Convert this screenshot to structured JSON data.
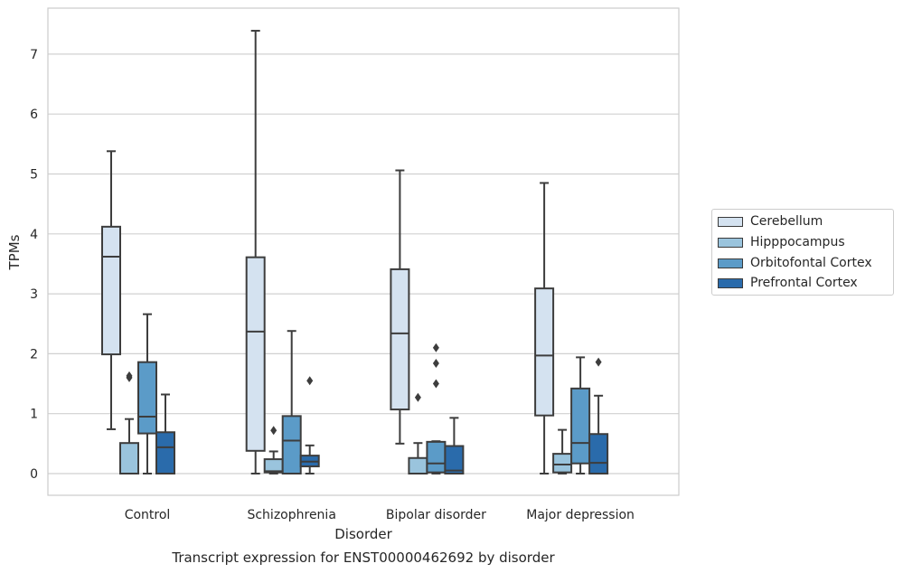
{
  "chart_data": {
    "type": "box",
    "title": "Transcript expression for ENST00000462692 by disorder",
    "xlabel": "Disorder",
    "ylabel": "TPMs",
    "ylim": [
      -0.35,
      7.75
    ],
    "yticks": [
      0,
      1,
      2,
      3,
      4,
      5,
      6,
      7
    ],
    "grid": true,
    "legend_position": "right",
    "categories": [
      "Control",
      "Schizophrenia",
      "Bipolar disorder",
      "Major depression"
    ],
    "series": [
      {
        "name": "Cerebellum",
        "color": "#d4e2f0",
        "boxes": [
          {
            "whisker_low": 0.74,
            "q1": 1.99,
            "median": 3.62,
            "q3": 4.12,
            "whisker_high": 5.38,
            "outliers": []
          },
          {
            "whisker_low": 0.0,
            "q1": 0.38,
            "median": 2.37,
            "q3": 3.61,
            "whisker_high": 7.39,
            "outliers": []
          },
          {
            "whisker_low": 0.5,
            "q1": 1.07,
            "median": 2.34,
            "q3": 3.41,
            "whisker_high": 5.06,
            "outliers": []
          },
          {
            "whisker_low": 0.0,
            "q1": 0.97,
            "median": 1.97,
            "q3": 3.09,
            "whisker_high": 4.85,
            "outliers": []
          }
        ]
      },
      {
        "name": "Hipppocampus",
        "color": "#9ac4dd",
        "boxes": [
          {
            "whisker_low": 0.0,
            "q1": 0.0,
            "median": 0.0,
            "q3": 0.51,
            "whisker_high": 0.91,
            "outliers": [
              1.6,
              1.63
            ]
          },
          {
            "whisker_low": 0.0,
            "q1": 0.02,
            "median": 0.04,
            "q3": 0.24,
            "whisker_high": 0.37,
            "outliers": [
              0.72
            ]
          },
          {
            "whisker_low": 0.0,
            "q1": 0.0,
            "median": 0.0,
            "q3": 0.26,
            "whisker_high": 0.51,
            "outliers": [
              1.27
            ]
          },
          {
            "whisker_low": 0.0,
            "q1": 0.02,
            "median": 0.15,
            "q3": 0.33,
            "whisker_high": 0.73,
            "outliers": []
          }
        ]
      },
      {
        "name": "Orbitofontal Cortex",
        "color": "#5b9bc8",
        "boxes": [
          {
            "whisker_low": 0.0,
            "q1": 0.67,
            "median": 0.95,
            "q3": 1.86,
            "whisker_high": 2.66,
            "outliers": []
          },
          {
            "whisker_low": 0.0,
            "q1": 0.0,
            "median": 0.55,
            "q3": 0.96,
            "whisker_high": 2.38,
            "outliers": []
          },
          {
            "whisker_low": 0.0,
            "q1": 0.02,
            "median": 0.17,
            "q3": 0.53,
            "whisker_high": 0.54,
            "outliers": [
              1.5,
              1.84,
              2.1
            ]
          },
          {
            "whisker_low": 0.0,
            "q1": 0.17,
            "median": 0.51,
            "q3": 1.42,
            "whisker_high": 1.94,
            "outliers": []
          }
        ]
      },
      {
        "name": "Prefrontal Cortex",
        "color": "#2a6bab",
        "boxes": [
          {
            "whisker_low": 0.0,
            "q1": 0.0,
            "median": 0.44,
            "q3": 0.69,
            "whisker_high": 1.32,
            "outliers": []
          },
          {
            "whisker_low": 0.0,
            "q1": 0.12,
            "median": 0.2,
            "q3": 0.3,
            "whisker_high": 0.47,
            "outliers": [
              1.55
            ]
          },
          {
            "whisker_low": 0.0,
            "q1": 0.0,
            "median": 0.05,
            "q3": 0.46,
            "whisker_high": 0.93,
            "outliers": []
          },
          {
            "whisker_low": 0.0,
            "q1": 0.0,
            "median": 0.18,
            "q3": 0.66,
            "whisker_high": 1.3,
            "outliers": [
              1.86
            ]
          }
        ]
      }
    ]
  }
}
